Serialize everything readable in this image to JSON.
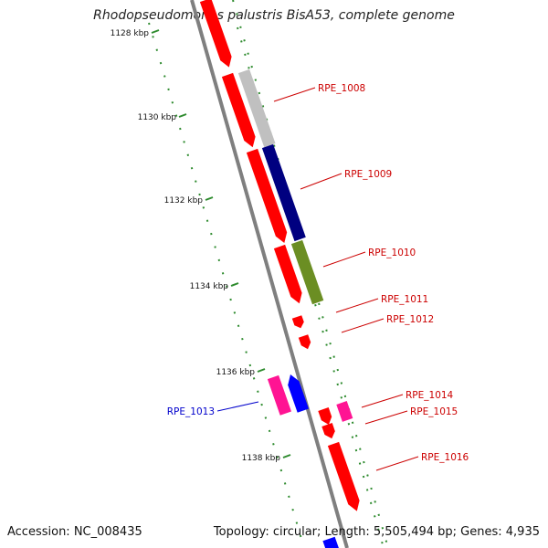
{
  "title": "Rhodopseudomonas palustris BisA53, complete genome",
  "footer": {
    "accession": "Accession: NC_008435",
    "summary": "Topology: circular; Length: 5,505,494 bp; Genes: 4,935"
  },
  "colors": {
    "backbone": "#8a8a8a",
    "tick": "#2e8b2e",
    "red_gene": "#ff0000",
    "gray_gene": "#c0c0c0",
    "navy_gene": "#000080",
    "olive_gene": "#6b8e23",
    "magenta_gene": "#ff1493",
    "blue_gene": "#0000ff",
    "label_red": "#cc0000",
    "label_blue": "#0000cc"
  },
  "kbp_labels": [
    "1128 kbp",
    "1130 kbp",
    "1132 kbp",
    "1134 kbp",
    "1136 kbp",
    "1138 kbp"
  ],
  "gene_labels": [
    {
      "name": "RPE_1008",
      "color": "red"
    },
    {
      "name": "RPE_1009",
      "color": "red"
    },
    {
      "name": "RPE_1010",
      "color": "red"
    },
    {
      "name": "RPE_1011",
      "color": "red"
    },
    {
      "name": "RPE_1012",
      "color": "red"
    },
    {
      "name": "RPE_1013",
      "color": "blue"
    },
    {
      "name": "RPE_1014",
      "color": "red"
    },
    {
      "name": "RPE_1015",
      "color": "red"
    },
    {
      "name": "RPE_1016",
      "color": "red"
    }
  ]
}
